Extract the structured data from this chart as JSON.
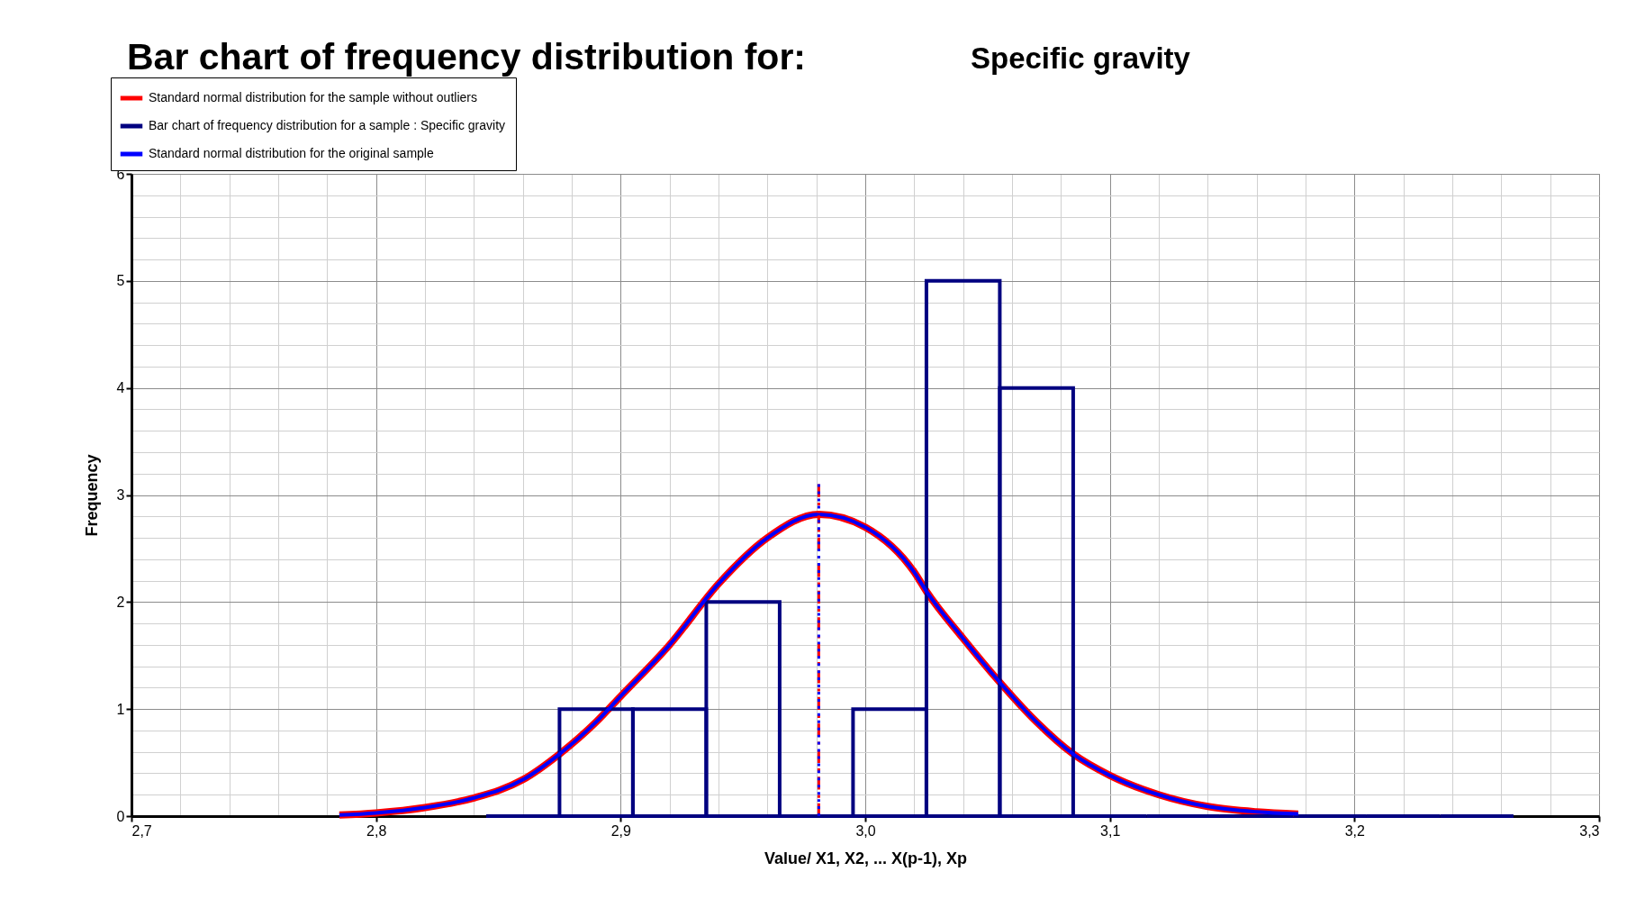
{
  "chart_data": {
    "type": "line",
    "title": "Bar chart of frequency distribution for:",
    "subtitle": "Specific gravity",
    "xlabel": "Value/        X1, X2,  ... X(p-1), Xp",
    "ylabel": "Frequency",
    "xlim": [
      2.7,
      3.3
    ],
    "xticks": [
      {
        "value": 2.7,
        "label": "2,7"
      },
      {
        "value": 2.8,
        "label": "2,8"
      },
      {
        "value": 2.9,
        "label": "2,9"
      },
      {
        "value": 3.0,
        "label": "3,0"
      },
      {
        "value": 3.1,
        "label": "3,1"
      },
      {
        "value": 3.2,
        "label": "3,2"
      },
      {
        "value": 3.3,
        "label": "3,3"
      }
    ],
    "ylim": [
      0,
      6
    ],
    "yticks": [
      0,
      1,
      2,
      3,
      4,
      5,
      6
    ],
    "grid": true,
    "legend": "top left",
    "series": [
      {
        "name": "Standard normal distribution for the sample without outliers",
        "color": "#ff0000",
        "x": [
          2.785,
          2.8,
          2.82,
          2.84,
          2.86,
          2.875,
          2.89,
          2.9,
          2.92,
          2.94,
          2.96,
          2.981,
          3.0,
          3.02,
          3.025,
          3.04,
          3.055,
          3.07,
          3.085,
          3.1,
          3.12,
          3.14,
          3.16,
          3.177
        ],
        "values": [
          0.01,
          0.03,
          0.08,
          0.17,
          0.34,
          0.58,
          0.88,
          1.12,
          1.6,
          2.17,
          2.6,
          2.82,
          2.7,
          2.28,
          2.1,
          1.66,
          1.25,
          0.88,
          0.58,
          0.38,
          0.2,
          0.09,
          0.04,
          0.02
        ]
      },
      {
        "name": "Bar chart of frequency distribution for a sample :  Specific gravity",
        "type": "histogram",
        "color": "#000080",
        "bins": [
          2.845,
          2.875,
          2.905,
          2.935,
          2.965,
          2.995,
          3.025,
          3.055,
          3.085,
          3.115,
          3.145,
          3.175,
          3.205,
          3.235,
          3.265
        ],
        "values": [
          0,
          1,
          1,
          2,
          0,
          1,
          5,
          4,
          0,
          0,
          0,
          0,
          0,
          0
        ]
      },
      {
        "name": "Standard normal distribution for the original sample",
        "color": "#0000ff",
        "x": [
          2.785,
          2.8,
          2.82,
          2.84,
          2.86,
          2.875,
          2.89,
          2.9,
          2.92,
          2.94,
          2.96,
          2.981,
          3.0,
          3.02,
          3.025,
          3.04,
          3.055,
          3.07,
          3.085,
          3.1,
          3.12,
          3.14,
          3.16,
          3.177
        ],
        "values": [
          0.01,
          0.03,
          0.08,
          0.17,
          0.34,
          0.58,
          0.88,
          1.12,
          1.6,
          2.17,
          2.6,
          2.82,
          2.7,
          2.28,
          2.1,
          1.66,
          1.25,
          0.88,
          0.58,
          0.38,
          0.2,
          0.09,
          0.04,
          0.02
        ]
      },
      {
        "color": "#ff0000",
        "line_style": "dashed",
        "x": [
          2.981,
          2.981
        ],
        "values": [
          0,
          3.1
        ]
      },
      {
        "color": "#0000ff",
        "line_style": "dotted",
        "x": [
          2.981,
          2.981
        ],
        "values": [
          0,
          3.1
        ]
      }
    ]
  }
}
